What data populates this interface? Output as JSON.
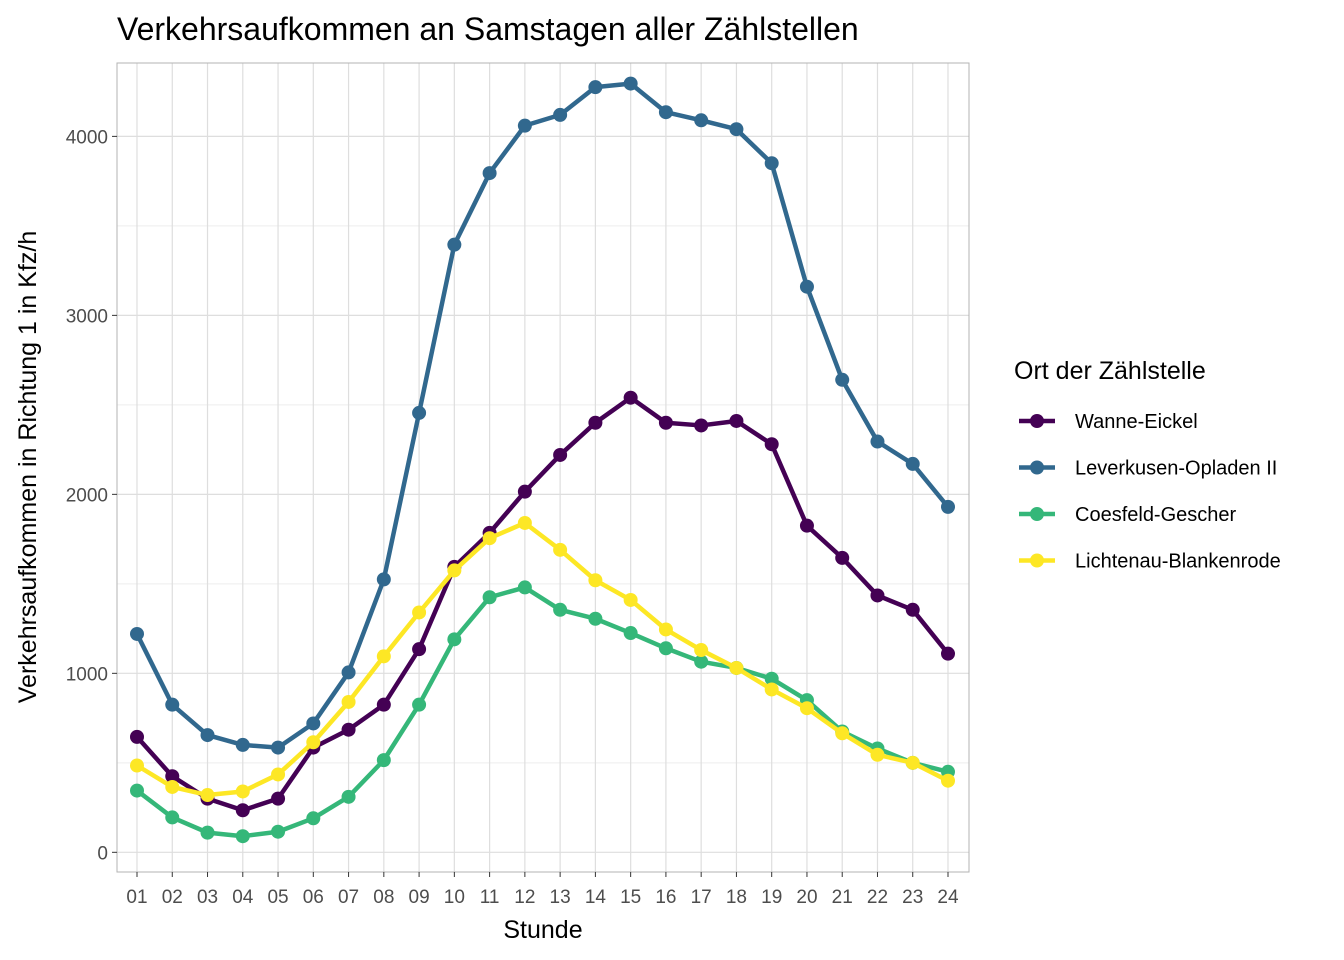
{
  "chart_data": {
    "type": "line",
    "title": "Verkehrsaufkommen an Samstagen aller Zählstellen",
    "xlabel": "Stunde",
    "ylabel": "Verkehrsaufkommen in Richtung 1 in Kfz/h",
    "categories": [
      "01",
      "02",
      "03",
      "04",
      "05",
      "06",
      "07",
      "08",
      "09",
      "10",
      "11",
      "12",
      "13",
      "14",
      "15",
      "16",
      "17",
      "18",
      "19",
      "20",
      "21",
      "22",
      "23",
      "24"
    ],
    "ylim": [
      -110,
      4410
    ],
    "yticks": [
      0,
      1000,
      2000,
      3000,
      4000
    ],
    "grid": true,
    "legend": {
      "title": "Ort der Zählstelle",
      "placement": "right"
    },
    "series": [
      {
        "name": "Wanne-Eickel",
        "color": "#440154",
        "values": [
          645,
          425,
          300,
          235,
          300,
          585,
          685,
          825,
          1135,
          1595,
          1785,
          2015,
          2220,
          2400,
          2540,
          2400,
          2385,
          2410,
          2280,
          1825,
          1645,
          1435,
          1355,
          1110
        ]
      },
      {
        "name": "Leverkusen-Opladen II",
        "color": "#31688E",
        "values": [
          1220,
          825,
          655,
          600,
          585,
          720,
          1005,
          1525,
          2455,
          3395,
          3795,
          4060,
          4120,
          4275,
          4295,
          4135,
          4090,
          4040,
          3850,
          3160,
          2640,
          2295,
          2170,
          1930
        ]
      },
      {
        "name": "Coesfeld-Gescher",
        "color": "#35B779",
        "values": [
          345,
          195,
          110,
          90,
          115,
          190,
          310,
          515,
          825,
          1190,
          1425,
          1480,
          1355,
          1305,
          1225,
          1140,
          1065,
          1030,
          970,
          850,
          675,
          580,
          500,
          450
        ]
      },
      {
        "name": "Lichtenau-Blankenrode",
        "color": "#FDE725",
        "values": [
          485,
          365,
          320,
          340,
          435,
          615,
          840,
          1095,
          1340,
          1575,
          1755,
          1840,
          1690,
          1520,
          1410,
          1245,
          1130,
          1030,
          910,
          805,
          665,
          545,
          500,
          400
        ]
      }
    ]
  }
}
